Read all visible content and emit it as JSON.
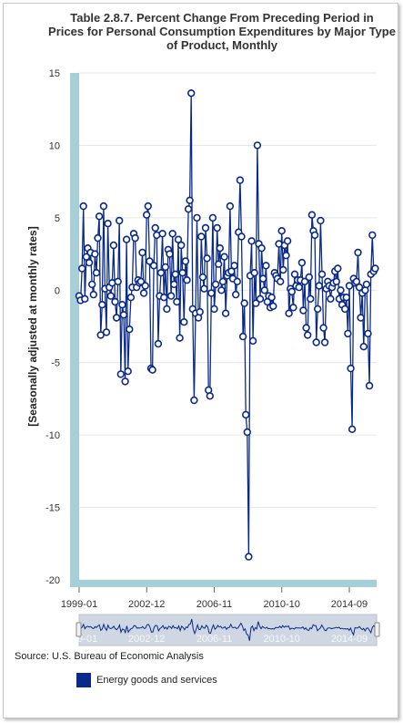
{
  "title_lines": [
    "Table 2.8.7. Percent Change From Preceding Period in",
    "Prices for Personal Consumption Expenditures by Major Type",
    "of Product, Monthly"
  ],
  "source": "Source: U.S. Bureau of Economic Analysis",
  "navigator_labels": [
    "1999-01",
    "2002-12",
    "2006-11",
    "2010-10",
    "2014-09"
  ],
  "colors": {
    "series": "#0a2a8a",
    "axis_band": "#a7cfd8",
    "grid": "#e6e6e6"
  },
  "chart_data": {
    "type": "line",
    "title": "Table 2.8.7. Percent Change From Preceding Period in Prices for Personal Consumption Expenditures by Major Type of Product, Monthly",
    "ylabel": "[Seasonally adjusted at monthly rates]",
    "xlabel": "",
    "ylim": [
      -20,
      15
    ],
    "yticks": [
      15,
      10,
      5,
      0,
      -5,
      -10,
      -15,
      -20
    ],
    "xlim": [
      "1999-01",
      "2016-04"
    ],
    "xticks": [
      "1999-01",
      "2002-12",
      "2006-11",
      "2010-10",
      "2014-09"
    ],
    "grid": true,
    "legend": "bottom-left",
    "series": [
      {
        "name": "Energy goods and services",
        "x_start": "1999-01",
        "frequency": "monthly",
        "values": [
          -0.4,
          -0.7,
          1.5,
          5.8,
          -0.6,
          2.3,
          2.9,
          1.9,
          2.6,
          0.4,
          -0.3,
          2.5,
          1.2,
          3.6,
          5.1,
          -3.1,
          -1.0,
          5.8,
          0.1,
          -2.9,
          4.6,
          0.2,
          -0.4,
          0.5,
          3.1,
          -0.8,
          -1.9,
          0.6,
          4.8,
          -5.8,
          -1.0,
          -1.7,
          -6.3,
          3.5,
          -5.6,
          -2.7,
          -0.5,
          0.2,
          3.9,
          3.6,
          0.2,
          0.7,
          0.5,
          0.6,
          2.6,
          -0.2,
          0.3,
          5.2,
          5.8,
          2.0,
          -5.4,
          -5.5,
          1.7,
          4.3,
          3.8,
          -3.7,
          -0.4,
          1.2,
          3.9,
          -0.5,
          1.6,
          -1.3,
          2.8,
          2.5,
          -0.4,
          3.9,
          0.4,
          1.1,
          -0.8,
          3.5,
          -3.3,
          3.1,
          1.2,
          -2.2,
          2.0,
          0.7,
          5.6,
          6.2,
          13.6,
          -1.3,
          -7.6,
          -1.6,
          5.0,
          -1.9,
          -1.5,
          3.7,
          0.9,
          0.1,
          4.3,
          2.2,
          -6.9,
          -7.3,
          -0.2,
          5.0,
          -1.3,
          0.4,
          4.3,
          1.8,
          2.9,
          0.0,
          0.6,
          2.3,
          -1.6,
          1.0,
          1.2,
          5.8,
          1.3,
          0.8,
          1.7,
          -0.3,
          0.6,
          4.0,
          7.6,
          3.7,
          -3.2,
          -0.9,
          -8.6,
          -9.8,
          -18.4,
          1.0,
          3.4,
          -3.5,
          1.2,
          -0.9,
          10.0,
          3.2,
          -0.6,
          2.9,
          0.8,
          0.0,
          1.7,
          -0.8,
          -0.4,
          -1.2,
          -0.5,
          -1.1,
          1.2,
          1.0,
          0.8,
          3.2,
          0.6,
          4.1,
          1.4,
          3.1,
          2.4,
          3.4,
          -1.6,
          0.1,
          -0.1,
          -1.2,
          1.1,
          0.3,
          0.7,
          0.2,
          0.7,
          1.9,
          -1.4,
          0.6,
          -2.6,
          -3.1,
          0.9,
          -0.6,
          5.2,
          4.1,
          3.8,
          -3.6,
          -1.3,
          0.3,
          4.8,
          1.1,
          -2.6,
          -3.6,
          0.1,
          0.6,
          0.3,
          -0.6,
          0.2,
          0.5,
          1.3,
          0.6,
          1.5,
          -0.6,
          0.0,
          -1.0,
          -0.5,
          -1.3,
          -0.5,
          -3.0,
          0.3,
          -5.4,
          -9.6,
          0.8,
          0.5,
          0.6,
          2.6,
          0.2,
          -1.9,
          -0.2,
          -3.9,
          0.0,
          0.4,
          -3.0,
          -6.6,
          1.1,
          3.8,
          1.3,
          1.5
        ]
      }
    ]
  }
}
